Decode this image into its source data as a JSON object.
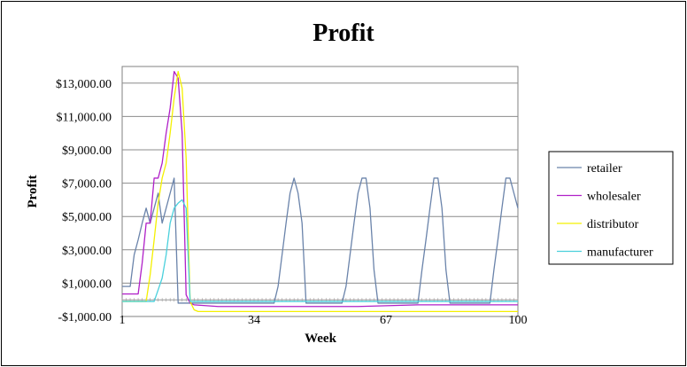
{
  "chart_data": {
    "type": "line",
    "title": "Profit",
    "xlabel": "Week",
    "ylabel": "Profit",
    "xlim": [
      1,
      100
    ],
    "ylim": [
      -1000,
      14000
    ],
    "x_ticks": [
      "1",
      "34",
      "67",
      "100"
    ],
    "y_ticks": [
      "$13,000.00",
      "$11,000.00",
      "$9,000.00",
      "$7,000.00",
      "$5,000.00",
      "$3,000.00",
      "$1,000.00",
      "-$1,000.00"
    ],
    "grid": true,
    "legend_position": "right",
    "series": [
      {
        "name": "retailer",
        "color": "#6a83aa",
        "points": [
          [
            1,
            800
          ],
          [
            2,
            800
          ],
          [
            3,
            800
          ],
          [
            4,
            2700
          ],
          [
            5,
            3600
          ],
          [
            6,
            4600
          ],
          [
            7,
            5500
          ],
          [
            8,
            4600
          ],
          [
            9,
            5500
          ],
          [
            10,
            6400
          ],
          [
            11,
            4600
          ],
          [
            12,
            5500
          ],
          [
            13,
            6400
          ],
          [
            14,
            7300
          ],
          [
            15,
            -200
          ],
          [
            16,
            -200
          ],
          [
            20,
            -200
          ],
          [
            25,
            -200
          ],
          [
            30,
            -200
          ],
          [
            35,
            -200
          ],
          [
            38,
            -200
          ],
          [
            39,
            -200
          ],
          [
            40,
            800
          ],
          [
            41,
            2700
          ],
          [
            42,
            4600
          ],
          [
            43,
            6400
          ],
          [
            44,
            7300
          ],
          [
            45,
            6400
          ],
          [
            46,
            4600
          ],
          [
            47,
            -200
          ],
          [
            50,
            -200
          ],
          [
            55,
            -200
          ],
          [
            56,
            -200
          ],
          [
            57,
            800
          ],
          [
            58,
            2700
          ],
          [
            59,
            4600
          ],
          [
            60,
            6400
          ],
          [
            61,
            7300
          ],
          [
            62,
            7300
          ],
          [
            63,
            5500
          ],
          [
            64,
            1800
          ],
          [
            65,
            -200
          ],
          [
            70,
            -200
          ],
          [
            74,
            -200
          ],
          [
            75,
            -200
          ],
          [
            76,
            1800
          ],
          [
            77,
            3600
          ],
          [
            78,
            5500
          ],
          [
            79,
            7300
          ],
          [
            80,
            7300
          ],
          [
            81,
            5500
          ],
          [
            82,
            1800
          ],
          [
            83,
            -200
          ],
          [
            90,
            -200
          ],
          [
            93,
            -200
          ],
          [
            94,
            1800
          ],
          [
            95,
            3600
          ],
          [
            96,
            5500
          ],
          [
            97,
            7300
          ],
          [
            98,
            7300
          ],
          [
            99,
            6400
          ],
          [
            100,
            5500
          ]
        ]
      },
      {
        "name": "wholesaler",
        "color": "#b020c8",
        "points": [
          [
            1,
            350
          ],
          [
            2,
            350
          ],
          [
            3,
            350
          ],
          [
            4,
            350
          ],
          [
            5,
            350
          ],
          [
            6,
            2200
          ],
          [
            7,
            4600
          ],
          [
            8,
            4600
          ],
          [
            9,
            7300
          ],
          [
            10,
            7300
          ],
          [
            11,
            8200
          ],
          [
            12,
            10000
          ],
          [
            13,
            11500
          ],
          [
            14,
            13700
          ],
          [
            15,
            13300
          ],
          [
            16,
            10000
          ],
          [
            17,
            300
          ],
          [
            18,
            -200
          ],
          [
            19,
            -300
          ],
          [
            25,
            -400
          ],
          [
            35,
            -400
          ],
          [
            50,
            -400
          ],
          [
            60,
            -400
          ],
          [
            75,
            -300
          ],
          [
            90,
            -300
          ],
          [
            100,
            -300
          ]
        ]
      },
      {
        "name": "distributor",
        "color": "#f4f000",
        "points": [
          [
            1,
            -100
          ],
          [
            3,
            -100
          ],
          [
            5,
            -100
          ],
          [
            7,
            -100
          ],
          [
            8,
            1500
          ],
          [
            9,
            3600
          ],
          [
            10,
            5800
          ],
          [
            11,
            7300
          ],
          [
            12,
            8200
          ],
          [
            13,
            10000
          ],
          [
            14,
            12100
          ],
          [
            15,
            13700
          ],
          [
            16,
            12700
          ],
          [
            17,
            8500
          ],
          [
            18,
            -100
          ],
          [
            19,
            -600
          ],
          [
            20,
            -700
          ],
          [
            30,
            -700
          ],
          [
            50,
            -700
          ],
          [
            70,
            -700
          ],
          [
            85,
            -700
          ],
          [
            100,
            -700
          ]
        ]
      },
      {
        "name": "manufacturer",
        "color": "#4ad0dc",
        "points": [
          [
            1,
            -100
          ],
          [
            5,
            -100
          ],
          [
            8,
            -100
          ],
          [
            9,
            -100
          ],
          [
            10,
            600
          ],
          [
            11,
            1300
          ],
          [
            12,
            2700
          ],
          [
            13,
            4600
          ],
          [
            14,
            5500
          ],
          [
            15,
            5800
          ],
          [
            16,
            6000
          ],
          [
            17,
            5500
          ],
          [
            18,
            -100
          ],
          [
            19,
            -100
          ],
          [
            30,
            -100
          ],
          [
            60,
            -100
          ],
          [
            80,
            -100
          ],
          [
            100,
            -100
          ]
        ]
      }
    ]
  }
}
